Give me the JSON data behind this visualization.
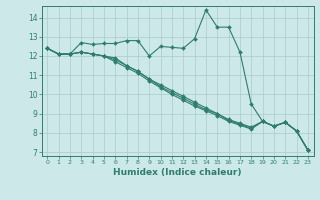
{
  "xlabel": "Humidex (Indice chaleur)",
  "x_values": [
    0,
    1,
    2,
    3,
    4,
    5,
    6,
    7,
    8,
    9,
    10,
    11,
    12,
    13,
    14,
    15,
    16,
    17,
    18,
    19,
    20,
    21,
    22,
    23
  ],
  "line1": [
    12.4,
    12.1,
    12.1,
    12.7,
    12.6,
    12.65,
    12.65,
    12.8,
    12.8,
    12.0,
    12.5,
    12.45,
    12.4,
    12.9,
    14.4,
    13.5,
    13.5,
    12.2,
    9.5,
    8.6,
    8.35,
    8.55,
    8.1,
    7.1
  ],
  "line2": [
    12.4,
    12.1,
    12.1,
    12.2,
    12.1,
    12.0,
    11.9,
    11.5,
    11.2,
    10.8,
    10.5,
    10.2,
    9.9,
    9.6,
    9.3,
    9.0,
    8.7,
    8.5,
    8.3,
    8.6,
    8.35,
    8.55,
    8.1,
    7.1
  ],
  "line3": [
    12.4,
    12.1,
    12.1,
    12.2,
    12.1,
    12.0,
    11.8,
    11.5,
    11.2,
    10.8,
    10.4,
    10.1,
    9.8,
    9.5,
    9.2,
    9.0,
    8.65,
    8.45,
    8.25,
    8.6,
    8.35,
    8.55,
    8.1,
    7.1
  ],
  "line4": [
    12.4,
    12.1,
    12.1,
    12.2,
    12.1,
    12.0,
    11.7,
    11.4,
    11.1,
    10.7,
    10.35,
    10.0,
    9.7,
    9.4,
    9.15,
    8.9,
    8.6,
    8.4,
    8.2,
    8.6,
    8.35,
    8.55,
    8.1,
    7.1
  ],
  "line_color": "#2e7d6e",
  "bg_color": "#cce8e8",
  "grid_color": "#aacccc",
  "ylim": [
    6.8,
    14.6
  ],
  "yticks": [
    7,
    8,
    9,
    10,
    11,
    12,
    13,
    14
  ],
  "xlim": [
    -0.5,
    23.5
  ]
}
